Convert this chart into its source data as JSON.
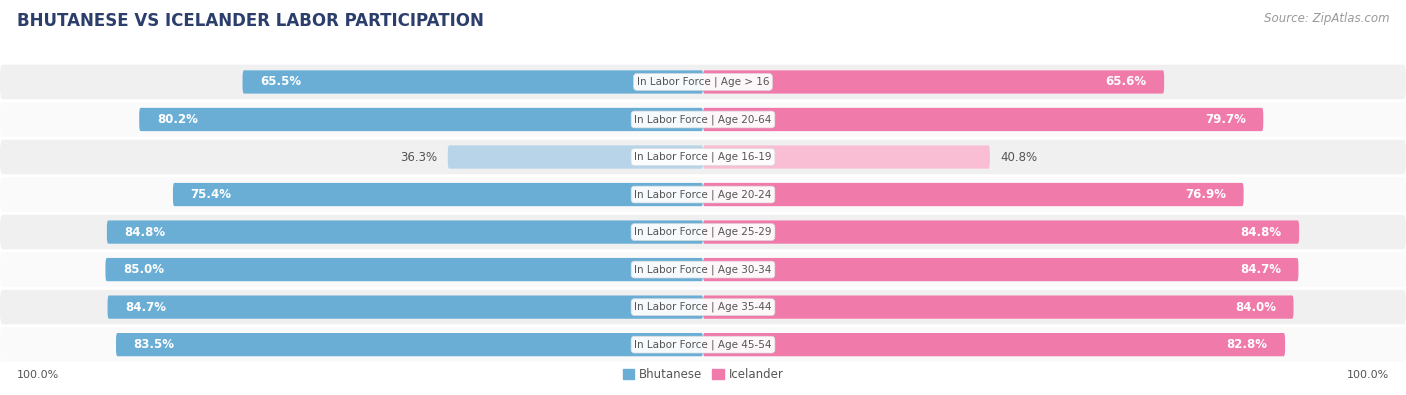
{
  "title": "BHUTANESE VS ICELANDER LABOR PARTICIPATION",
  "source": "Source: ZipAtlas.com",
  "categories": [
    "In Labor Force | Age > 16",
    "In Labor Force | Age 20-64",
    "In Labor Force | Age 16-19",
    "In Labor Force | Age 20-24",
    "In Labor Force | Age 25-29",
    "In Labor Force | Age 30-34",
    "In Labor Force | Age 35-44",
    "In Labor Force | Age 45-54"
  ],
  "bhutanese": [
    65.5,
    80.2,
    36.3,
    75.4,
    84.8,
    85.0,
    84.7,
    83.5
  ],
  "icelander": [
    65.6,
    79.7,
    40.8,
    76.9,
    84.8,
    84.7,
    84.0,
    82.8
  ],
  "bhutanese_color_full": "#6aaed6",
  "bhutanese_color_light": "#b8d4e8",
  "icelander_color_full": "#f07aaa",
  "icelander_color_light": "#f9bdd4",
  "row_bg_even": "#f0f0f0",
  "row_bg_odd": "#fafafa",
  "label_white": "#ffffff",
  "label_dark": "#555555",
  "center_label_color": "#555555",
  "title_color": "#2c3e6b",
  "source_color": "#999999",
  "legend_color": "#555555",
  "axis_label_color": "#555555",
  "title_fontsize": 12,
  "source_fontsize": 8.5,
  "bar_label_fontsize": 8.5,
  "category_fontsize": 7.5,
  "legend_fontsize": 8.5,
  "axis_label_fontsize": 8,
  "threshold_white_label": 50,
  "background_color": "#ffffff"
}
